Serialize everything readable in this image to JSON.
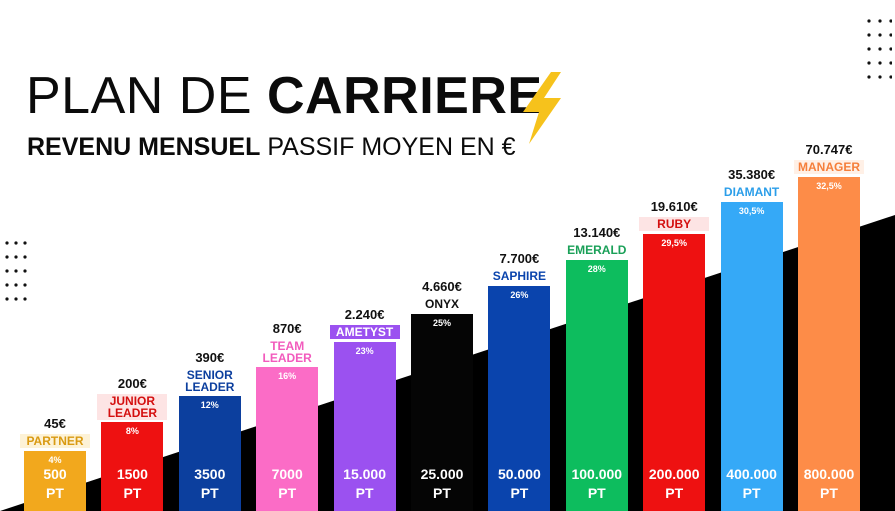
{
  "header": {
    "title_light": "PLAN DE",
    "title_bold": "CARRIERE",
    "subtitle_bold": "REVENU MENSUEL",
    "subtitle_light": "PASSIF  MOYEN EN €",
    "icon": "lightning-bolt-icon"
  },
  "colors": {
    "background_light": "#ffffff",
    "background_dark": "#000000",
    "bolt": "#f6c21c"
  },
  "chart_data": {
    "type": "bar",
    "categories": [
      "PARTNER",
      "JUNIOR LEADER",
      "SENIOR LEADER",
      "TEAM LEADER",
      "AMETYST",
      "ONYX",
      "SAPHIRE",
      "EMERALD",
      "RUBY",
      "DIAMANT",
      "MANAGER"
    ],
    "values": [
      45,
      200,
      390,
      870,
      2240,
      4660,
      7700,
      13140,
      19610,
      35380,
      70747
    ],
    "series": [
      {
        "name": "Revenu mensuel passif moyen en €",
        "values": [
          45,
          200,
          390,
          870,
          2240,
          4660,
          7700,
          13140,
          19610,
          35380,
          70747
        ]
      }
    ],
    "bars": [
      {
        "rank": "PARTNER",
        "amount": "45€",
        "pct": "4%",
        "points": "500",
        "unit": "PT",
        "color": "#f2a81d",
        "label_color": "#d99a12",
        "label_bg": "#fdf2d6"
      },
      {
        "rank": "JUNIOR LEADER",
        "amount": "200€",
        "pct": "8%",
        "points": "1500",
        "unit": "PT",
        "color": "#ee1111",
        "label_color": "#d40f0f",
        "label_bg": "#fde4e4"
      },
      {
        "rank": "SENIOR LEADER",
        "amount": "390€",
        "pct": "12%",
        "points": "3500",
        "unit": "PT",
        "color": "#0c3f9e",
        "label_color": "#0c3f9e",
        "label_bg": "#ffffff"
      },
      {
        "rank": "TEAM LEADER",
        "amount": "870€",
        "pct": "16%",
        "points": "7000",
        "unit": "PT",
        "color": "#fb6cc6",
        "label_color": "#f25bbd",
        "label_bg": "#ffffff"
      },
      {
        "rank": "AMETYST",
        "amount": "2.240€",
        "pct": "23%",
        "points": "15.000",
        "unit": "PT",
        "color": "#9b51f0",
        "label_color": "#ffffff",
        "label_bg": "#9b51f0"
      },
      {
        "rank": "ONYX",
        "amount": "4.660€",
        "pct": "25%",
        "points": "25.000",
        "unit": "PT",
        "color": "#050505",
        "label_color": "#111111",
        "label_bg": "#ffffff"
      },
      {
        "rank": "SAPHIRE",
        "amount": "7.700€",
        "pct": "26%",
        "points": "50.000",
        "unit": "PT",
        "color": "#0a44ad",
        "label_color": "#0a44ad",
        "label_bg": "#ffffff"
      },
      {
        "rank": "EMERALD",
        "amount": "13.140€",
        "pct": "28%",
        "points": "100.000",
        "unit": "PT",
        "color": "#0dbd5e",
        "label_color": "#1aa058",
        "label_bg": "#ffffff"
      },
      {
        "rank": "RUBY",
        "amount": "19.610€",
        "pct": "29,5%",
        "points": "200.000",
        "unit": "PT",
        "color": "#ee1111",
        "label_color": "#d40f0f",
        "label_bg": "#fde4e4"
      },
      {
        "rank": "DIAMANT",
        "amount": "35.380€",
        "pct": "30,5%",
        "points": "400.000",
        "unit": "PT",
        "color": "#35a9f7",
        "label_color": "#2b9ee9",
        "label_bg": "#ffffff"
      },
      {
        "rank": "MANAGER",
        "amount": "70.747€",
        "pct": "32,5%",
        "points": "800.000",
        "unit": "PT",
        "color": "#fd8c48",
        "label_color": "#f57f3b",
        "label_bg": "#fff0e6"
      }
    ]
  }
}
